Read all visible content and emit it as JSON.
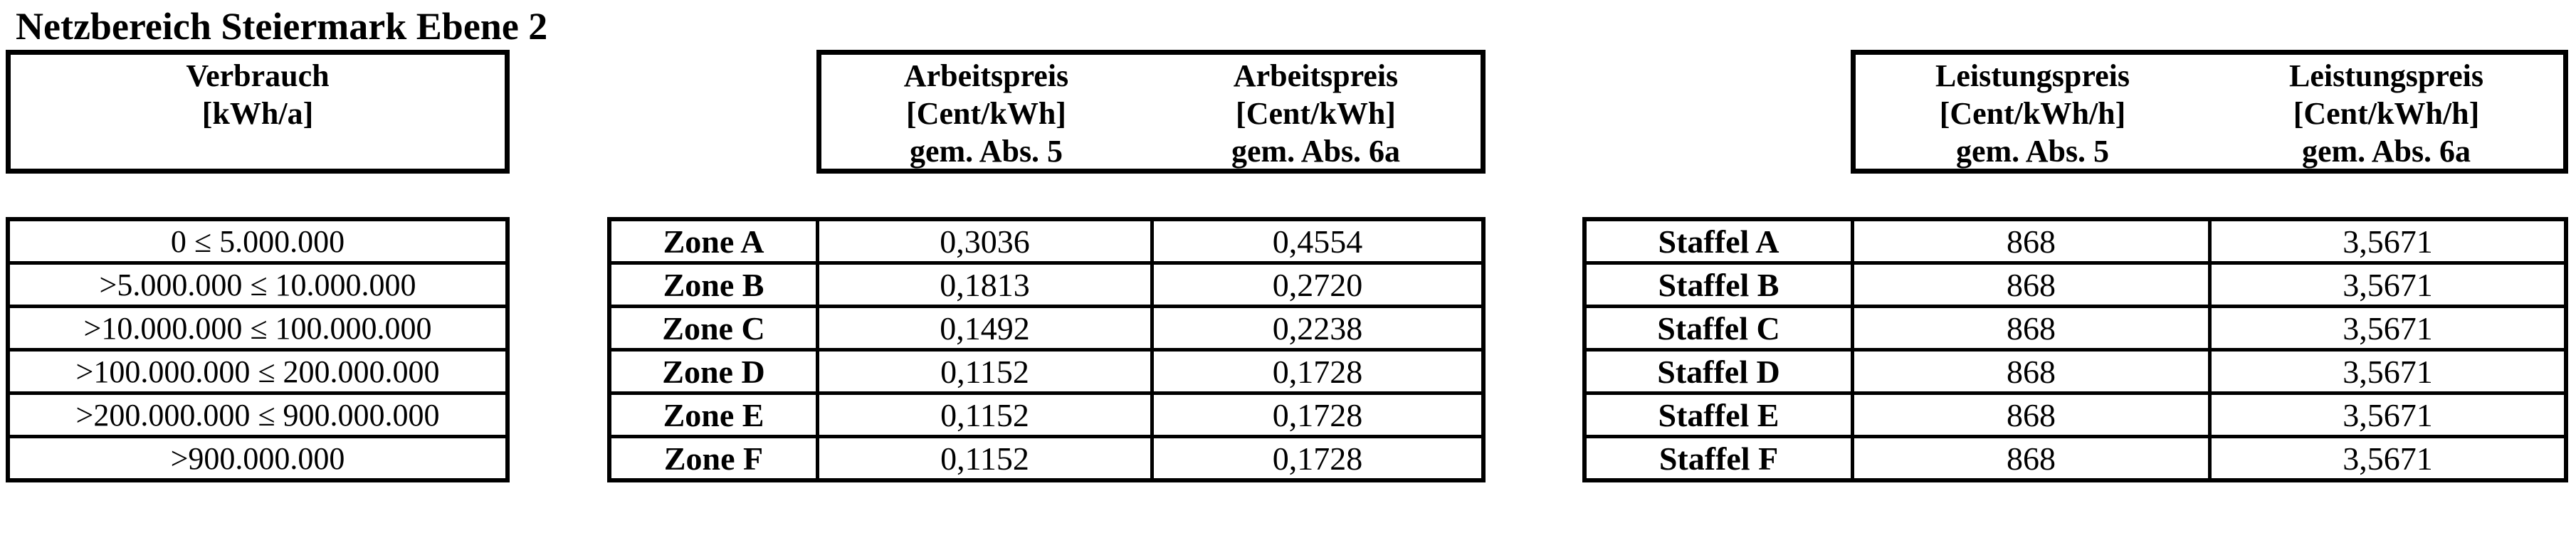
{
  "title": "Netzbereich Steiermark Ebene 2",
  "colors": {
    "text": "#000000",
    "background": "#ffffff"
  },
  "verbrauch_table": {
    "header_lines": [
      "Verbrauch",
      "[kWh/a]"
    ],
    "rows": [
      "0 ≤ 5.000.000",
      ">5.000.000 ≤ 10.000.000",
      ">10.000.000 ≤ 100.000.000",
      ">100.000.000 ≤ 200.000.000",
      ">200.000.000 ≤ 900.000.000",
      ">900.000.000"
    ]
  },
  "arbeitspreis_table": {
    "header_col1": [
      "Arbeitspreis",
      "[Cent/kWh]",
      "gem. Abs. 5"
    ],
    "header_col2": [
      "Arbeitspreis",
      "[Cent/kWh]",
      "gem. Abs. 6a"
    ],
    "rows": [
      {
        "zone": "Zone A",
        "abs5": "0,3036",
        "abs6a": "0,4554"
      },
      {
        "zone": "Zone B",
        "abs5": "0,1813",
        "abs6a": "0,2720"
      },
      {
        "zone": "Zone C",
        "abs5": "0,1492",
        "abs6a": "0,2238"
      },
      {
        "zone": "Zone D",
        "abs5": "0,1152",
        "abs6a": "0,1728"
      },
      {
        "zone": "Zone E",
        "abs5": "0,1152",
        "abs6a": "0,1728"
      },
      {
        "zone": "Zone F",
        "abs5": "0,1152",
        "abs6a": "0,1728"
      }
    ]
  },
  "leistungspreis_table": {
    "header_col1": [
      "Leistungspreis",
      "[Cent/kWh/h]",
      "gem. Abs. 5"
    ],
    "header_col2": [
      "Leistungspreis",
      "[Cent/kWh/h]",
      "gem. Abs. 6a"
    ],
    "rows": [
      {
        "staffel": "Staffel A",
        "abs5": "868",
        "abs6a": "3,5671"
      },
      {
        "staffel": "Staffel B",
        "abs5": "868",
        "abs6a": "3,5671"
      },
      {
        "staffel": "Staffel C",
        "abs5": "868",
        "abs6a": "3,5671"
      },
      {
        "staffel": "Staffel D",
        "abs5": "868",
        "abs6a": "3,5671"
      },
      {
        "staffel": "Staffel E",
        "abs5": "868",
        "abs6a": "3,5671"
      },
      {
        "staffel": "Staffel F",
        "abs5": "868",
        "abs6a": "3,5671"
      }
    ]
  }
}
